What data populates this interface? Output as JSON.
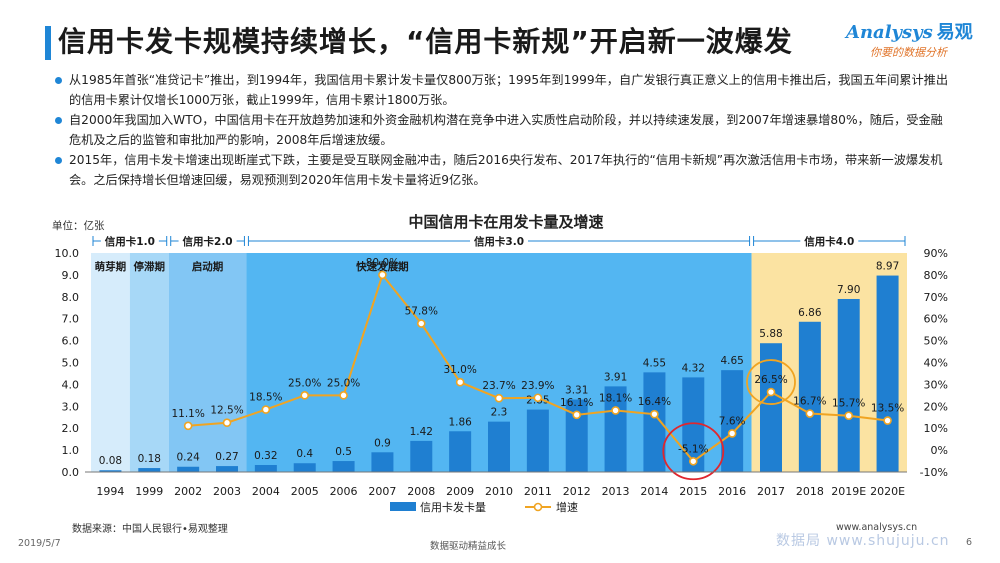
{
  "header": {
    "title": "信用卡发卡规模持续增长，“信用卡新规”开启新一波爆发",
    "logo_text": "nalysys",
    "logo_letter": "A",
    "logo_cn": "易观",
    "logo_slogan": "你要的数据分析"
  },
  "bullets": [
    "从1985年首张“准贷记卡”推出，到1994年，我国信用卡累计发卡量仅800万张；1995年到1999年，自广发银行真正意义上的信用卡推出后，我国五年间累计推出的信用卡累计仅增长1000万张，截止1999年，信用卡累计1800万张。",
    "自2000年我国加入WTO，中国信用卡在开放趋势加速和外资金融机构潜在竞争中进入实质性启动阶段，并以持续速发展，到2007年增速暴增80%，随后，受金融危机及之后的监管和审批加严的影响，2008年后增速放缓。",
    "2015年，信用卡发卡增速出现断崖式下跌，主要是受互联网金融冲击，随后2016央行发布、2017年执行的“信用卡新规”再次激活信用卡市场，带来新一波爆发机会。之后保持增长但增速回缓，易观预测到2020年信用卡发卡量将近9亿张。"
  ],
  "chart_data": {
    "type": "bar",
    "title": "中国信用卡在用发卡量及增速",
    "unit_label": "单位：亿张",
    "categories": [
      "1994",
      "1999",
      "2002",
      "2003",
      "2004",
      "2005",
      "2006",
      "2007",
      "2008",
      "2009",
      "2010",
      "2011",
      "2012",
      "2013",
      "2014",
      "2015",
      "2016",
      "2017",
      "2018",
      "2019E",
      "2020E"
    ],
    "series": [
      {
        "name": "信用卡发卡量",
        "type": "bar",
        "axis": "left",
        "color": "#1f7fd1",
        "values": [
          0.08,
          0.18,
          0.24,
          0.27,
          0.32,
          0.4,
          0.5,
          0.9,
          1.42,
          1.86,
          2.3,
          2.85,
          3.31,
          3.91,
          4.55,
          4.32,
          4.65,
          5.88,
          6.86,
          7.9,
          8.97
        ],
        "labels": [
          "0.08",
          "0.18",
          "0.24",
          "0.27",
          "0.32",
          "0.4",
          "0.5",
          "0.9",
          "1.42",
          "1.86",
          "2.3",
          "2.85",
          "3.31",
          "3.91",
          "4.55",
          "4.32",
          "4.65",
          "5.88",
          "6.86",
          "7.90",
          "8.97"
        ]
      },
      {
        "name": "增速",
        "type": "line",
        "axis": "right",
        "color": "#f0a422",
        "values": [
          null,
          null,
          11.1,
          12.5,
          18.5,
          25.0,
          25.0,
          80.0,
          57.8,
          31.0,
          23.7,
          23.9,
          16.1,
          18.1,
          16.4,
          -5.1,
          7.6,
          26.5,
          16.7,
          15.7,
          13.5
        ],
        "labels": [
          "",
          "",
          "11.1%",
          "12.5%",
          "18.5%",
          "25.0%",
          "25.0%",
          "80.0%",
          "57.8%",
          "31.0%",
          "23.7%",
          "23.9%",
          "16.1%",
          "18.1%",
          "16.4%",
          "-5.1%",
          "7.6%",
          "26.5%",
          "16.7%",
          "15.7%",
          "13.5%"
        ]
      }
    ],
    "ylim_left": [
      0,
      10
    ],
    "yticks_left": [
      "0.0",
      "1.0",
      "2.0",
      "3.0",
      "4.0",
      "5.0",
      "6.0",
      "7.0",
      "8.0",
      "9.0",
      "10.0"
    ],
    "ylim_right": [
      -10,
      90
    ],
    "yticks_right": [
      "-10%",
      "0%",
      "10%",
      "20%",
      "30%",
      "40%",
      "50%",
      "60%",
      "70%",
      "80%",
      "90%"
    ],
    "eras": [
      {
        "label": "信用卡1.0",
        "start": 0,
        "end": 1
      },
      {
        "label": "信用卡2.0",
        "start": 2,
        "end": 3
      },
      {
        "label": "信用卡3.0",
        "start": 4,
        "end": 16
      },
      {
        "label": "信用卡4.0",
        "start": 17,
        "end": 20
      }
    ],
    "stages": [
      {
        "label": "萌芽期",
        "start": 0,
        "end": 0,
        "color": "#d6ecfb"
      },
      {
        "label": "停滞期",
        "start": 1,
        "end": 1,
        "color": "#a7d8f7"
      },
      {
        "label": "启动期",
        "start": 2,
        "end": 3,
        "color": "#82c6f4"
      },
      {
        "label": "快速发展期",
        "start": 4,
        "end": 16,
        "color": "#53b6f2"
      },
      {
        "label": "",
        "start": 17,
        "end": 20,
        "color": "#fbe3a2"
      }
    ],
    "highlights": [
      15,
      17
    ],
    "highlight_color": "#e0262e",
    "highlight_ring_color": "#f0a422",
    "legend_position": "bottom",
    "grid": false
  },
  "footer": {
    "source": "数据来源：中国人民银行•易观整理",
    "date": "2019/5/7",
    "center": "数据驱动精益成长",
    "url": "www.analysys.cn",
    "watermark": "数据局  www.shujuju.cn",
    "page": "6"
  }
}
